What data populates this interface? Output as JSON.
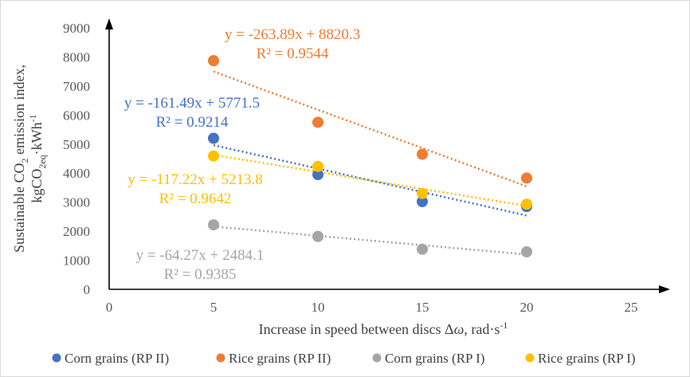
{
  "chart_data": {
    "type": "scatter",
    "x_axis": {
      "label_main": "Increase in speed between discs Δ",
      "label_symbol": "ω",
      "label_unit": ", rad·s",
      "label_sup": "-1",
      "range": [
        0,
        25
      ],
      "ticks": [
        0,
        5,
        10,
        15,
        20,
        25
      ]
    },
    "y_axis": {
      "label_line1_pre": "Sustainable CO",
      "label_line1_sub": "2",
      "label_line1_post": " emission index,",
      "label_line2_pre": "kgCO",
      "label_line2_sub": "2eq",
      "label_line2_mid": "·kWh",
      "label_line2_sup": "-1",
      "range": [
        0,
        9000
      ],
      "ticks": [
        0,
        1000,
        2000,
        3000,
        4000,
        5000,
        6000,
        7000,
        8000,
        9000
      ]
    },
    "grid": false,
    "legend_position": "bottom",
    "series": [
      {
        "name": "Corn grains (RP II)",
        "color": "#4472C4",
        "x": [
          5,
          10,
          15,
          20
        ],
        "y": [
          5200,
          3950,
          3020,
          2850
        ],
        "trendline": {
          "slope": -161.49,
          "intercept": 5771.5
        },
        "equation": "y = -161.49x + 5771.5",
        "r2": "R² = 0.9214"
      },
      {
        "name": "Rice grains (RP II)",
        "color": "#ED7D31",
        "x": [
          5,
          10,
          15,
          20
        ],
        "y": [
          7870,
          5750,
          4650,
          3830
        ],
        "trendline": {
          "slope": -263.89,
          "intercept": 8820.3
        },
        "equation": "y = -263.89x + 8820.3",
        "r2": "R² = 0.9544"
      },
      {
        "name": "Corn grains (RP I)",
        "color": "#A5A5A5",
        "x": [
          5,
          10,
          15,
          20
        ],
        "y": [
          2220,
          1820,
          1380,
          1290
        ],
        "trendline": {
          "slope": -64.27,
          "intercept": 2484.1
        },
        "equation": "y = -64.27x + 2484.1",
        "r2": "R² = 0.9385"
      },
      {
        "name": "Rice grains (RP I)",
        "color": "#FFC000",
        "x": [
          5,
          10,
          15,
          20
        ],
        "y": [
          4590,
          4230,
          3300,
          2930
        ],
        "trendline": {
          "slope": -117.22,
          "intercept": 5213.8
        },
        "equation": "y = -117.22x + 5213.8",
        "r2": "R² = 0.9642"
      }
    ]
  }
}
